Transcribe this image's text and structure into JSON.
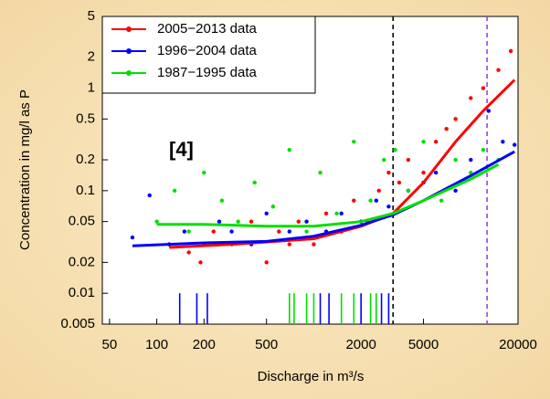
{
  "chart_data": {
    "type": "scatter",
    "x_label": "Discharge in m³/s",
    "y_label": "Concentration in mg/l as P",
    "annotation": "[4]",
    "log_x": true,
    "log_y": true,
    "xlim": [
      45,
      20000
    ],
    "xticks": [
      50,
      100,
      200,
      500,
      2000,
      5000,
      20000
    ],
    "ylim": [
      0.005,
      5
    ],
    "yticks": [
      0.005,
      0.01,
      0.02,
      0.05,
      0.1,
      0.2,
      0.5,
      1,
      2,
      5
    ],
    "vlines": [
      {
        "x": 3200,
        "color": "#000000"
      },
      {
        "x": 12700,
        "color": "#a040e0"
      }
    ],
    "legend": "top-left",
    "series": [
      {
        "name": "2005−2013 data",
        "color": "#ff0000",
        "x": [
          120,
          160,
          190,
          230,
          300,
          400,
          500,
          600,
          700,
          800,
          1000,
          1200,
          1500,
          1800,
          2200,
          2600,
          3000,
          3500,
          4000,
          5000,
          6000,
          7000,
          8000,
          10000,
          12000,
          15000,
          18000
        ],
        "values": [
          0.03,
          0.025,
          0.02,
          0.04,
          0.03,
          0.05,
          0.02,
          0.04,
          0.03,
          0.05,
          0.03,
          0.06,
          0.04,
          0.08,
          0.05,
          0.1,
          0.15,
          0.12,
          0.2,
          0.15,
          0.3,
          0.4,
          0.5,
          0.8,
          1,
          1.5,
          2.3
        ],
        "fit_x": [
          120,
          300,
          1000,
          2000,
          3200,
          5000,
          8000,
          12000,
          19000
        ],
        "fit_y": [
          0.028,
          0.03,
          0.034,
          0.045,
          0.06,
          0.12,
          0.3,
          0.6,
          1.2
        ],
        "censored_x": [],
        "censored_y": []
      },
      {
        "name": "1996−2004 data",
        "color": "#0000ff",
        "x": [
          70,
          90,
          120,
          150,
          200,
          250,
          300,
          400,
          500,
          700,
          900,
          1200,
          1500,
          2000,
          2500,
          3000,
          4000,
          5000,
          6000,
          8000,
          10000,
          13000,
          16000,
          19000
        ],
        "values": [
          0.035,
          0.09,
          0.03,
          0.04,
          0.03,
          0.05,
          0.04,
          0.03,
          0.06,
          0.04,
          0.05,
          0.04,
          0.06,
          0.05,
          0.08,
          0.07,
          0.1,
          0.12,
          0.15,
          0.1,
          0.2,
          0.6,
          0.3,
          0.28
        ],
        "fit_x": [
          70,
          200,
          500,
          1000,
          2000,
          3200,
          5000,
          10000,
          19000
        ],
        "fit_y": [
          0.029,
          0.031,
          0.032,
          0.036,
          0.046,
          0.058,
          0.08,
          0.14,
          0.24
        ],
        "censored_x": [
          140,
          180,
          210,
          1100,
          1250,
          2000,
          2700,
          3000
        ],
        "censored_y": [
          0.01,
          0.01,
          0.01,
          0.01,
          0.01,
          0.01,
          0.01,
          0.01
        ]
      },
      {
        "name": "1987−1995 data",
        "color": "#00e000",
        "x": [
          100,
          130,
          160,
          200,
          260,
          330,
          420,
          550,
          700,
          900,
          1100,
          1400,
          1800,
          2300,
          2800,
          3300,
          4000,
          5000,
          6500,
          8000,
          10000,
          12000,
          15000
        ],
        "values": [
          0.05,
          0.1,
          0.04,
          0.15,
          0.08,
          0.05,
          0.12,
          0.07,
          0.25,
          0.04,
          0.15,
          0.06,
          0.3,
          0.08,
          0.2,
          0.25,
          0.1,
          0.3,
          0.08,
          0.2,
          0.15,
          0.25,
          0.2
        ],
        "fit_x": [
          100,
          200,
          500,
          1000,
          2000,
          3200,
          5000,
          10000,
          15000
        ],
        "fit_y": [
          0.047,
          0.047,
          0.045,
          0.045,
          0.05,
          0.06,
          0.08,
          0.13,
          0.18
        ],
        "censored_x": [
          700,
          750,
          900,
          1000,
          1500,
          1800,
          2300,
          2500
        ],
        "censored_y": [
          0.01,
          0.01,
          0.01,
          0.01,
          0.01,
          0.01,
          0.01,
          0.01
        ]
      }
    ]
  }
}
